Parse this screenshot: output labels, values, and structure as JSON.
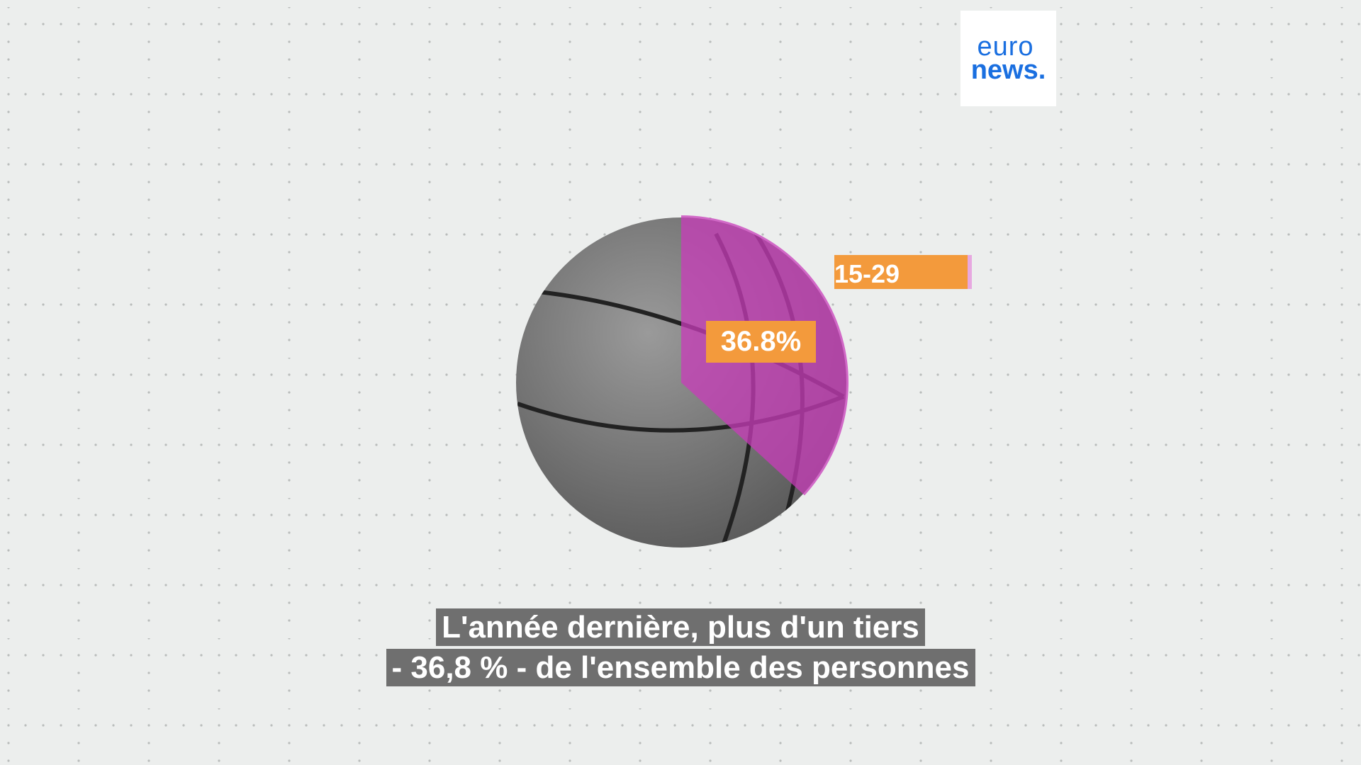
{
  "logo": {
    "line1": "euro",
    "line2": "news.",
    "color": "#1a6fe0"
  },
  "chart_data": {
    "type": "pie",
    "slices": [
      {
        "label": "15-29 years old",
        "value": 36.8,
        "color": "#c83cb9"
      },
      {
        "value": 63.2,
        "color": "#7a7a7a"
      }
    ],
    "data_label": "36.8%",
    "legend_label": "15-29 years old"
  },
  "age_label": "15-29 years old",
  "percent_label": "36.8%",
  "captions": {
    "line1": "L'année dernière, plus d'un tiers",
    "line2": "- 36,8 % - de l'ensemble des personnes"
  },
  "colors": {
    "background": "#eceeed",
    "accent_orange": "#f39a3c",
    "magenta": "#c83cb9"
  }
}
